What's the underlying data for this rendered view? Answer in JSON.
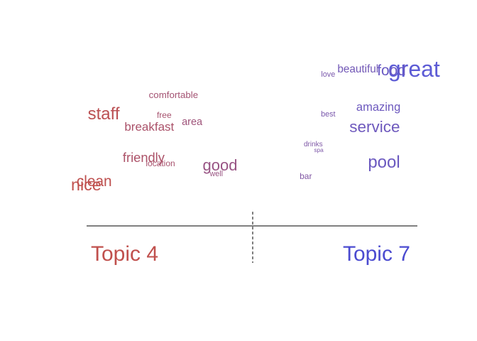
{
  "chart_data": {
    "type": "scatter",
    "title": "",
    "xlabel": "",
    "ylabel": "",
    "xlim": [
      -1,
      1
    ],
    "ylim": [
      0,
      1
    ],
    "grid": false,
    "legend": "none",
    "colors": {
      "topic_left": "#C0504D",
      "topic_right": "#5B5BD6"
    },
    "topics": {
      "left": "Topic 4",
      "right": "Topic 7"
    },
    "words": [
      {
        "word": "great",
        "x": 0.98,
        "y": 0.9,
        "freq": 1.0
      },
      {
        "word": "food",
        "x": 0.72,
        "y": 0.91,
        "freq": 0.55
      },
      {
        "word": "beautiful",
        "x": 0.54,
        "y": 0.93,
        "freq": 0.33
      },
      {
        "word": "love",
        "x": 0.38,
        "y": 0.9,
        "freq": 0.15
      },
      {
        "word": "amazing",
        "x": 0.65,
        "y": 0.66,
        "freq": 0.38
      },
      {
        "word": "best",
        "x": 0.38,
        "y": 0.62,
        "freq": 0.15
      },
      {
        "word": "service",
        "x": 0.63,
        "y": 0.51,
        "freq": 0.62
      },
      {
        "word": "drinks",
        "x": 0.3,
        "y": 0.41,
        "freq": 0.12
      },
      {
        "word": "spa",
        "x": 0.33,
        "y": 0.37,
        "freq": 0.05
      },
      {
        "word": "pool",
        "x": 0.68,
        "y": 0.26,
        "freq": 0.68
      },
      {
        "word": "bar",
        "x": 0.26,
        "y": 0.18,
        "freq": 0.2
      },
      {
        "word": "good",
        "x": -0.2,
        "y": 0.24,
        "freq": 0.6
      },
      {
        "word": "well",
        "x": -0.22,
        "y": 0.2,
        "freq": 0.15
      },
      {
        "word": "comfortable",
        "x": -0.45,
        "y": 0.75,
        "freq": 0.25
      },
      {
        "word": "staff",
        "x": -0.91,
        "y": 0.6,
        "freq": 0.68
      },
      {
        "word": "free",
        "x": -0.5,
        "y": 0.61,
        "freq": 0.2
      },
      {
        "word": "area",
        "x": -0.35,
        "y": 0.56,
        "freq": 0.3
      },
      {
        "word": "breakfast",
        "x": -0.58,
        "y": 0.52,
        "freq": 0.4
      },
      {
        "word": "friendly",
        "x": -0.61,
        "y": 0.3,
        "freq": 0.45
      },
      {
        "word": "location",
        "x": -0.52,
        "y": 0.27,
        "freq": 0.2
      },
      {
        "word": "clean",
        "x": -0.97,
        "y": 0.13,
        "freq": 0.55
      },
      {
        "word": "nice",
        "x": -1.0,
        "y": 0.1,
        "freq": 0.65
      }
    ]
  }
}
